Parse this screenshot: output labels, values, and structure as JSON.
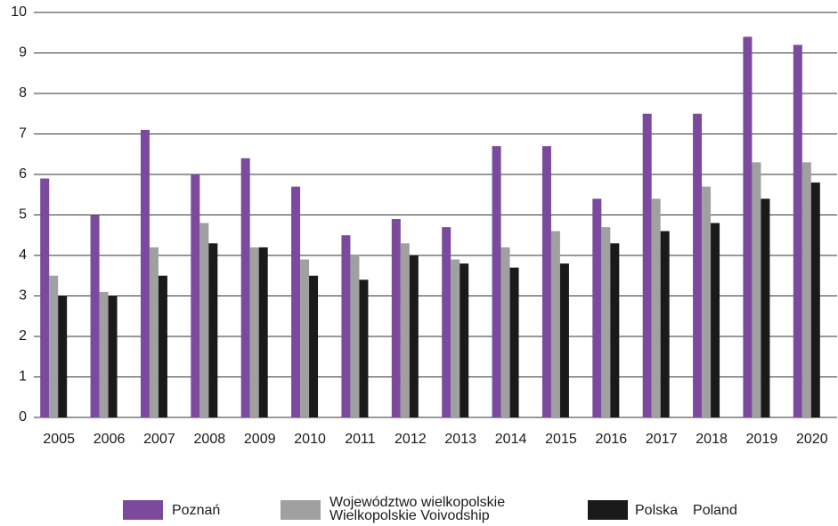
{
  "chart_data": {
    "type": "bar",
    "categories": [
      "2005",
      "2006",
      "2007",
      "2008",
      "2009",
      "2010",
      "2011",
      "2012",
      "2013",
      "2014",
      "2015",
      "2016",
      "2017",
      "2018",
      "2019",
      "2020"
    ],
    "series": [
      {
        "name": "Poznań",
        "color": "#7b4a9e",
        "values": [
          5.9,
          5.0,
          7.1,
          6.0,
          6.4,
          5.7,
          4.5,
          4.9,
          4.7,
          6.7,
          6.7,
          5.4,
          7.5,
          7.5,
          9.4,
          9.2
        ]
      },
      {
        "name": "Województwo wielkopolskie",
        "name_en": "Wielkopolskie Voivodship",
        "color": "#a0a0a0",
        "values": [
          3.5,
          3.1,
          4.2,
          4.8,
          4.2,
          3.9,
          4.0,
          4.3,
          3.9,
          4.2,
          4.6,
          4.7,
          5.4,
          5.7,
          6.3,
          6.3
        ]
      },
      {
        "name": "Polska",
        "name_en": "Poland",
        "color": "#1a1a1a",
        "values": [
          3.0,
          3.0,
          3.5,
          4.3,
          4.2,
          3.5,
          3.4,
          4.0,
          3.8,
          3.7,
          3.8,
          4.3,
          4.6,
          4.8,
          5.4,
          5.8
        ]
      }
    ],
    "ylim": [
      0,
      10
    ],
    "yticks": [
      0,
      1,
      2,
      3,
      4,
      5,
      6,
      7,
      8,
      9,
      10
    ],
    "grid": true
  }
}
